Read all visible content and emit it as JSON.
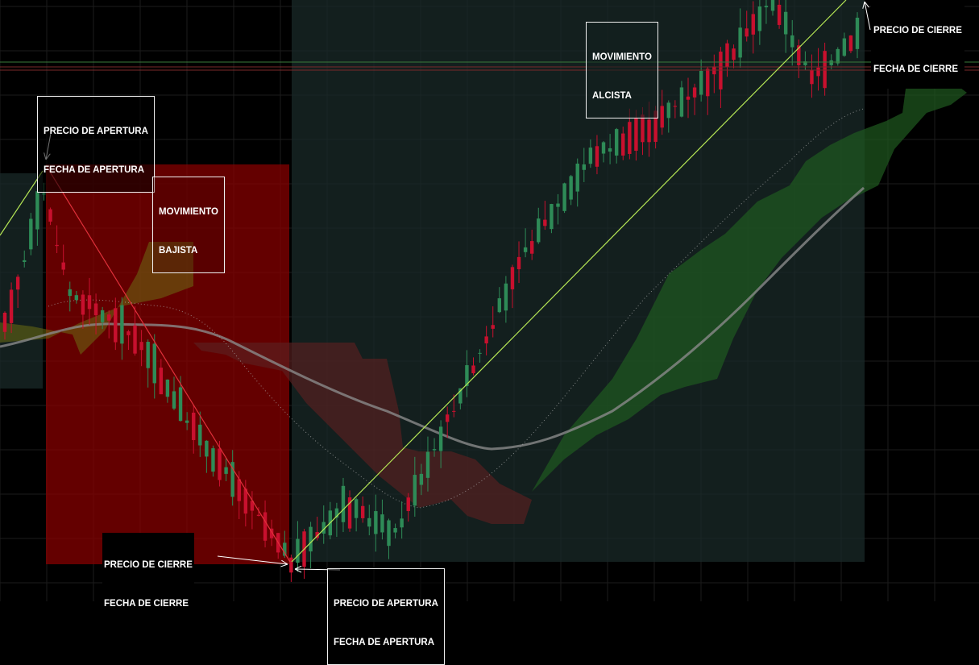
{
  "annotations": {
    "open_left": {
      "line1": "PRECIO DE APERTURA",
      "line2": "FECHA DE APERTURA"
    },
    "bearish": {
      "line1": "MOVIMIENTO",
      "line2": "BAJISTA"
    },
    "close_left": {
      "line1": "PRECIO DE CIERRE",
      "line2": "FECHA DE CIERRE"
    },
    "open_right": {
      "line1": "PRECIO DE APERTURA",
      "line2": "FECHA DE APERTURA"
    },
    "bullish": {
      "line1": "MOVIMIENTO",
      "line2": "ALCISTA"
    },
    "close_right": {
      "line1": "PRECIO DE CIERRE",
      "line2": "FECHA DE CIERRE"
    }
  },
  "colors": {
    "background": "#000000",
    "grid": "#1c1c1c",
    "bullish_candle": "#2e8b57",
    "bearish_candle": "#c8102e",
    "bearish_zone": "#8b0000",
    "bullish_zone": "#1a2a28",
    "trend_line_up": "#b5e655",
    "trend_line_down": "#e0303a",
    "moving_average": "#8a8a8a",
    "cloud_green": "#1f5a1f",
    "cloud_red": "#5a2020"
  },
  "chart_data": {
    "type": "candlestick",
    "grid": true,
    "axes_labels_visible": false,
    "segments": [
      {
        "label": "MOVIMIENTO BAJISTA",
        "direction": "down",
        "start_index": 3,
        "end_index": 44
      },
      {
        "label": "MOVIMIENTO ALCISTA",
        "direction": "up",
        "start_index": 44,
        "end_index": 131
      }
    ],
    "price_path": [
      {
        "i": 0,
        "p": 0.42
      },
      {
        "i": 6,
        "p": 0.66
      },
      {
        "i": 10,
        "p": 0.48
      },
      {
        "i": 20,
        "p": 0.4
      },
      {
        "i": 30,
        "p": 0.22
      },
      {
        "i": 44,
        "p": 0.0
      },
      {
        "i": 52,
        "p": 0.1
      },
      {
        "i": 60,
        "p": 0.05
      },
      {
        "i": 70,
        "p": 0.3
      },
      {
        "i": 80,
        "p": 0.55
      },
      {
        "i": 90,
        "p": 0.72
      },
      {
        "i": 100,
        "p": 0.78
      },
      {
        "i": 110,
        "p": 0.88
      },
      {
        "i": 118,
        "p": 1.0
      },
      {
        "i": 124,
        "p": 0.86
      },
      {
        "i": 131,
        "p": 0.94
      }
    ]
  }
}
